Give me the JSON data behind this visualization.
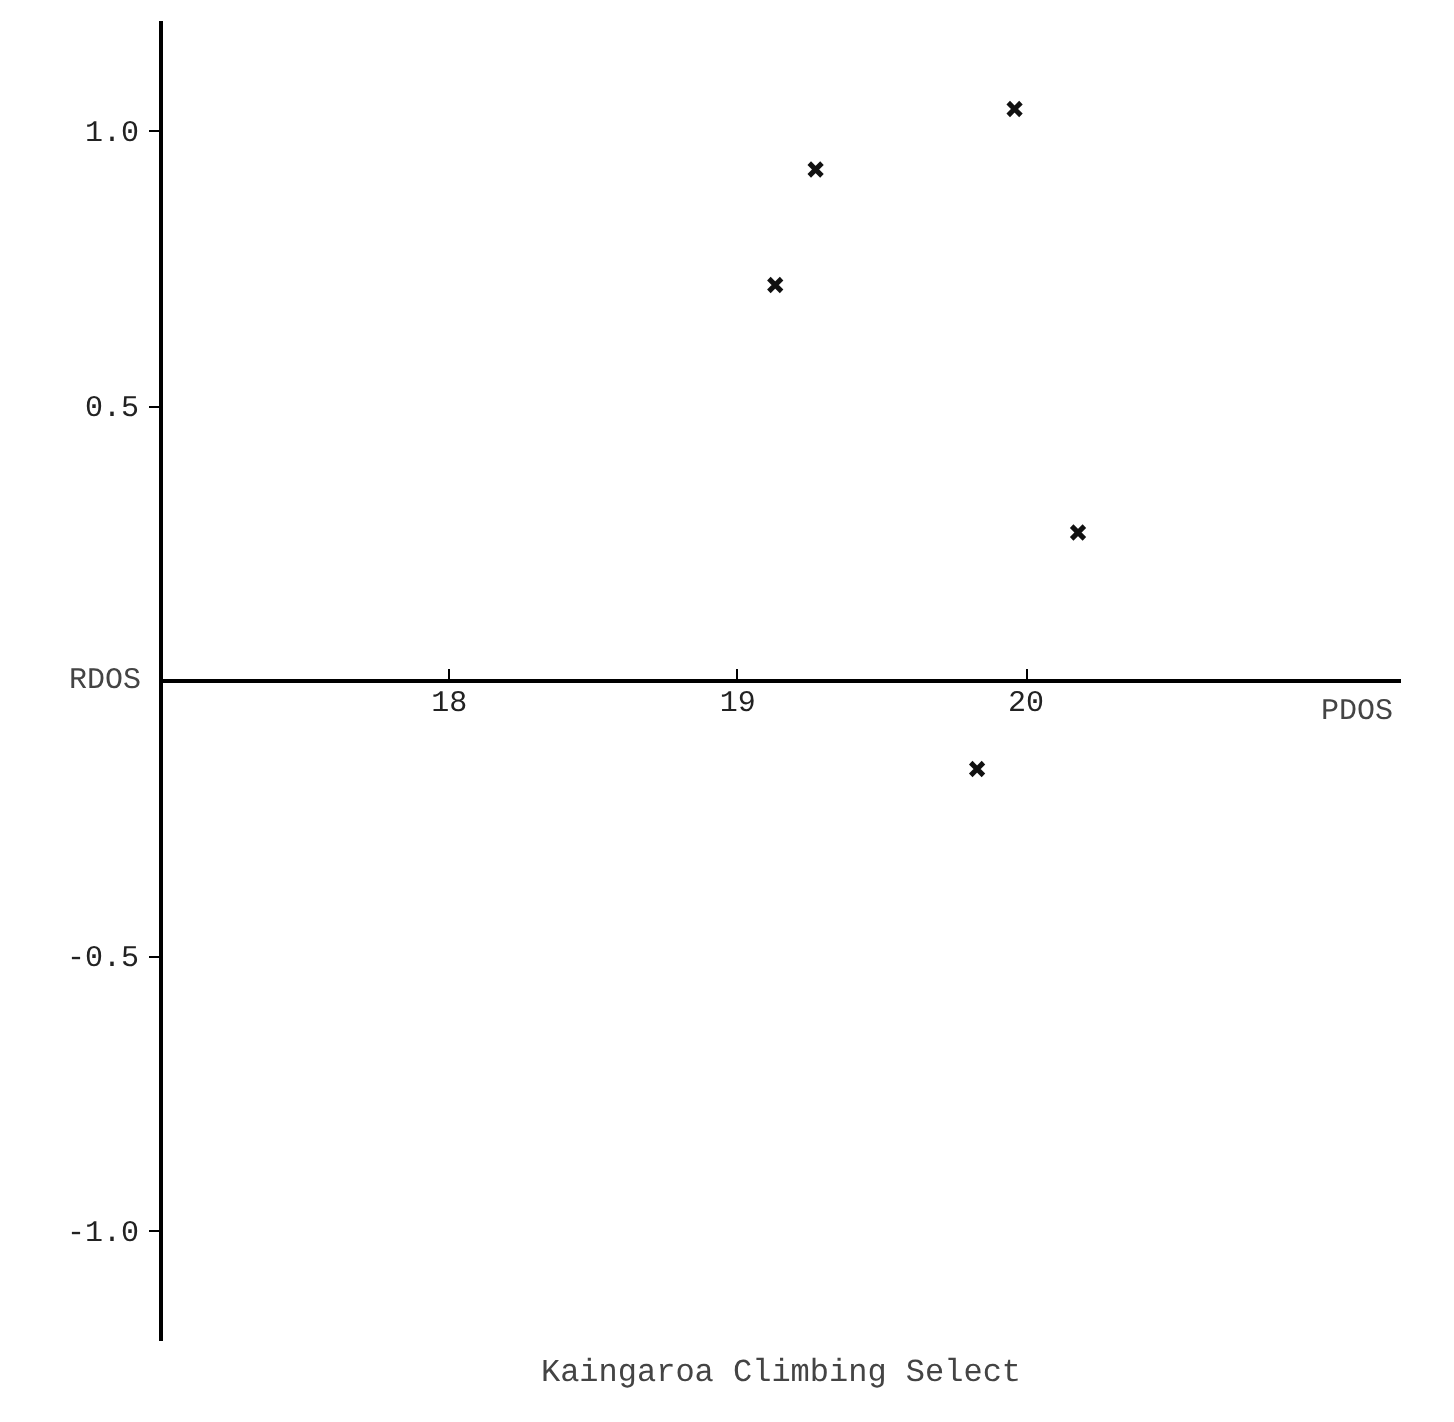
{
  "chart_data": {
    "type": "scatter",
    "title": "Kaingaroa Climbing Select",
    "xlabel": "PDOS",
    "ylabel": "RDOS",
    "x": [
      19.13,
      19.27,
      19.96,
      20.18,
      19.83
    ],
    "values": [
      0.72,
      0.93,
      1.04,
      0.27,
      -0.16
    ],
    "color": "#111111",
    "marker": "cross",
    "grid": false,
    "xlim": [
      17.0,
      21.3
    ],
    "ylim": [
      -1.2,
      1.2
    ],
    "xticks": [
      18,
      19,
      20
    ],
    "yticks": [
      {
        "value": 1,
        "label": "1.0"
      },
      {
        "value": 0.5,
        "label": "0.5"
      },
      {
        "value": -0.5,
        "label": "-0.5"
      },
      {
        "value": -1,
        "label": "-1.0"
      }
    ]
  }
}
